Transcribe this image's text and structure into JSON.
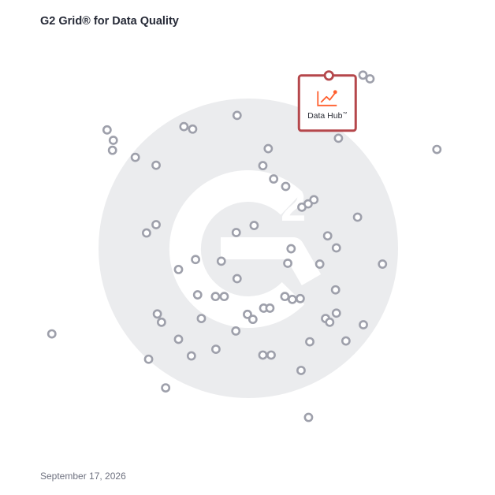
{
  "title": "G2 Grid® for Data Quality",
  "date": "September 17, 2026",
  "colors": {
    "top_left_border": "#6a4fc1",
    "top_right_border": "#ef5a2f",
    "bottom_left_border": "#2aa0de",
    "bottom_right_border": "#8b3fb6",
    "point_stroke": "#9ea0ab",
    "highlight": "#b5474b",
    "highlight_icon": "#ff5f2e",
    "watermark": "#eceded"
  },
  "chart_data": {
    "type": "scatter",
    "title": "G2 Grid® for Data Quality",
    "xlabel": "",
    "ylabel": "",
    "xlim": [
      0,
      100
    ],
    "ylim": [
      0,
      100
    ],
    "quadrant_split": {
      "x": 50,
      "y": 50
    },
    "grid": false,
    "highlight": {
      "label": "Data Hub",
      "mark": "™",
      "x": 69.5,
      "y": 91.5
    },
    "points": [
      {
        "x": 77.7,
        "y": 91.6
      },
      {
        "x": 79.4,
        "y": 90.7
      },
      {
        "x": 71.8,
        "y": 76.4
      },
      {
        "x": 95.5,
        "y": 73.7
      },
      {
        "x": 47.4,
        "y": 81.9
      },
      {
        "x": 34.6,
        "y": 79.2
      },
      {
        "x": 36.7,
        "y": 78.6
      },
      {
        "x": 16.1,
        "y": 78.4
      },
      {
        "x": 17.6,
        "y": 75.9
      },
      {
        "x": 17.4,
        "y": 73.5
      },
      {
        "x": 22.9,
        "y": 71.8
      },
      {
        "x": 27.9,
        "y": 69.9
      },
      {
        "x": 54.9,
        "y": 73.9
      },
      {
        "x": 53.6,
        "y": 69.8
      },
      {
        "x": 56.2,
        "y": 66.6
      },
      {
        "x": 59.1,
        "y": 64.8
      },
      {
        "x": 63.0,
        "y": 59.8
      },
      {
        "x": 64.5,
        "y": 60.6
      },
      {
        "x": 65.9,
        "y": 61.6
      },
      {
        "x": 76.4,
        "y": 57.4
      },
      {
        "x": 51.5,
        "y": 55.4
      },
      {
        "x": 47.2,
        "y": 53.7
      },
      {
        "x": 25.6,
        "y": 53.6
      },
      {
        "x": 27.9,
        "y": 55.6
      },
      {
        "x": 69.2,
        "y": 52.9
      },
      {
        "x": 60.4,
        "y": 49.8
      },
      {
        "x": 71.3,
        "y": 50.0
      },
      {
        "x": 37.4,
        "y": 47.2
      },
      {
        "x": 43.6,
        "y": 46.8
      },
      {
        "x": 33.3,
        "y": 44.8
      },
      {
        "x": 59.6,
        "y": 46.3
      },
      {
        "x": 67.3,
        "y": 46.1
      },
      {
        "x": 82.4,
        "y": 46.1
      },
      {
        "x": 47.4,
        "y": 42.6
      },
      {
        "x": 71.1,
        "y": 39.9
      },
      {
        "x": 37.9,
        "y": 38.7
      },
      {
        "x": 42.2,
        "y": 38.3
      },
      {
        "x": 44.3,
        "y": 38.3
      },
      {
        "x": 58.9,
        "y": 38.3
      },
      {
        "x": 60.7,
        "y": 37.6
      },
      {
        "x": 62.6,
        "y": 37.8
      },
      {
        "x": 53.8,
        "y": 35.5
      },
      {
        "x": 55.3,
        "y": 35.5
      },
      {
        "x": 49.9,
        "y": 34.0
      },
      {
        "x": 51.2,
        "y": 32.8
      },
      {
        "x": 71.3,
        "y": 34.3
      },
      {
        "x": 68.7,
        "y": 33.0
      },
      {
        "x": 69.7,
        "y": 32.1
      },
      {
        "x": 77.8,
        "y": 31.5
      },
      {
        "x": 28.2,
        "y": 34.1
      },
      {
        "x": 29.2,
        "y": 32.1
      },
      {
        "x": 38.8,
        "y": 33.0
      },
      {
        "x": 47.1,
        "y": 30.0
      },
      {
        "x": 2.8,
        "y": 29.3
      },
      {
        "x": 33.3,
        "y": 28.0
      },
      {
        "x": 64.9,
        "y": 27.4
      },
      {
        "x": 73.6,
        "y": 27.6
      },
      {
        "x": 42.3,
        "y": 25.6
      },
      {
        "x": 36.4,
        "y": 24.0
      },
      {
        "x": 26.1,
        "y": 23.2
      },
      {
        "x": 53.6,
        "y": 24.2
      },
      {
        "x": 55.6,
        "y": 24.2
      },
      {
        "x": 62.8,
        "y": 20.5
      },
      {
        "x": 30.2,
        "y": 16.3
      },
      {
        "x": 64.6,
        "y": 9.2
      }
    ]
  }
}
